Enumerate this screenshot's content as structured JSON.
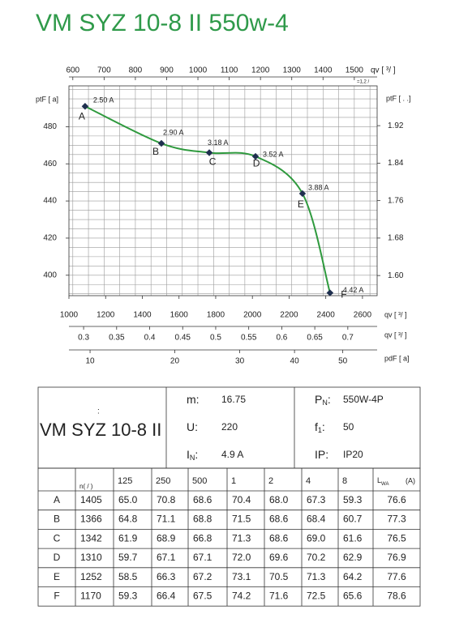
{
  "chart_data": {
    "type": "line",
    "title": "VM SYZ 10-8 II 550w-4",
    "xlabel": "qv [  ³/  ]",
    "xlim": [
      1000,
      2680
    ],
    "xticks": [
      1000,
      1200,
      1400,
      1600,
      1800,
      2000,
      2200,
      2400,
      2600
    ],
    "top_axis": {
      "label": "qv [  ³/  ]",
      "note": "=1,2  /",
      "xlim": [
        587.6,
        1573
      ],
      "xticks": [
        600,
        700,
        800,
        900,
        1000,
        1100,
        1200,
        1300,
        1400,
        1500
      ],
      "minor_ticks": [
        650,
        750,
        850,
        950,
        1050,
        1150,
        1250,
        1350,
        1450,
        1550
      ]
    },
    "bottom_axes": [
      {
        "label": "qv [  ³/  ]",
        "xlim": [
          0.2778,
          0.7444
        ],
        "xticks": [
          0.3,
          0.35,
          0.4,
          0.45,
          0.5,
          0.55,
          0.6,
          0.65,
          0.7
        ]
      },
      {
        "label": "pdF [  a]",
        "scale": "sqrt",
        "xlim": [
          8.04,
          57.8
        ],
        "xticks": [
          10,
          20,
          30,
          40,
          50
        ]
      }
    ],
    "ylabel": "ptF [  a]",
    "ylim": [
      389,
      502
    ],
    "yticks": [
      400,
      420,
      440,
      460,
      480
    ],
    "minor_yticks": [
      390,
      395,
      405,
      410,
      415,
      425,
      430,
      435,
      445,
      450,
      455,
      465,
      470,
      475,
      485,
      490,
      495,
      500
    ],
    "y2label": "ptF [   .  .]",
    "y2lim": [
      1.557,
      2.005
    ],
    "y2ticks": [
      {
        "value": 1.6,
        "label": "1.60"
      },
      {
        "value": 1.68,
        "label": "1.68"
      },
      {
        "value": 1.76,
        "label": "1.76"
      },
      {
        "value": 1.84,
        "label": "1.84"
      },
      {
        "value": 1.92,
        "label": "1.92"
      }
    ],
    "grid": true,
    "series": [
      {
        "color": "#2f9a3e",
        "marker_color": "#1f2f4f",
        "x": [
          1088,
          1504,
          1765,
          2017,
          2273,
          2423
        ],
        "values": [
          491,
          471,
          466,
          464,
          444,
          390.5
        ],
        "points": [
          "A",
          "B",
          "C",
          "D",
          "E",
          "F"
        ],
        "labels": [
          "2.50 A",
          "2.90 A",
          "3.18 A",
          "3.52 A",
          "3.88 A",
          "4.42 A"
        ]
      }
    ]
  },
  "spec": {
    "mark": ":",
    "model": "VM SYZ 10-8 II",
    "items": [
      {
        "label": "m",
        "sub": "",
        "sep": ":",
        "value": "16.75"
      },
      {
        "label": "P",
        "sub": "N",
        "sep": ":",
        "value": "550W-4P"
      },
      {
        "label": "U",
        "sub": "",
        "sep": ":",
        "value": "220"
      },
      {
        "label": "f",
        "sub": "1",
        "sep": ":",
        "value": "50"
      },
      {
        "label": "I",
        "sub": "N",
        "sep": ":",
        "value": "4.9  A"
      },
      {
        "label": "IP",
        "sub": "",
        "sep": ":",
        "value": "IP20"
      }
    ]
  },
  "table": {
    "header": [
      "n( / )",
      "125",
      "250",
      "500",
      "1",
      "2",
      "4",
      "8"
    ],
    "last_header": {
      "text": "L",
      "sub": "WA",
      "unit": "(A)"
    },
    "rows": [
      [
        "A",
        "1405",
        "65.0",
        "70.8",
        "68.6",
        "70.4",
        "68.0",
        "67.3",
        "59.3",
        "76.6"
      ],
      [
        "B",
        "1366",
        "64.8",
        "71.1",
        "68.8",
        "71.5",
        "68.6",
        "68.4",
        "60.7",
        "77.3"
      ],
      [
        "C",
        "1342",
        "61.9",
        "68.9",
        "66.8",
        "71.3",
        "68.6",
        "69.0",
        "61.6",
        "76.5"
      ],
      [
        "D",
        "1310",
        "59.7",
        "67.1",
        "67.1",
        "72.0",
        "69.6",
        "70.2",
        "62.9",
        "76.9"
      ],
      [
        "E",
        "1252",
        "58.5",
        "66.3",
        "67.2",
        "73.1",
        "70.5",
        "71.3",
        "64.2",
        "77.6"
      ],
      [
        "F",
        "1170",
        "59.3",
        "66.4",
        "67.5",
        "74.2",
        "71.6",
        "72.5",
        "65.6",
        "78.6"
      ]
    ]
  }
}
